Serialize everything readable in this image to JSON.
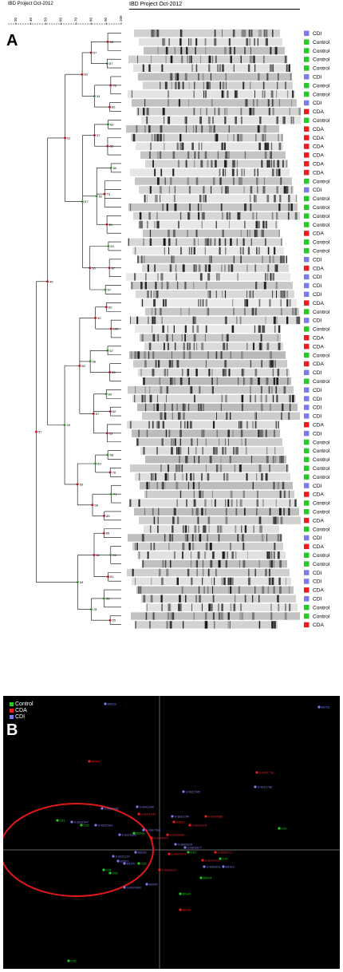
{
  "header": {
    "dendro_title": "IBD Project Oct-2012",
    "gel_title": "IBD Project Oct-2012",
    "scale_ticks": [
      "30",
      "40",
      "50",
      "60",
      "70",
      "80",
      "90",
      "100"
    ]
  },
  "panel_a": {
    "letter": "A",
    "colors": {
      "CDI": "#7b7bf0",
      "Control": "#22cc22",
      "CDA": "#ee1c1c"
    },
    "samples": [
      "CDI",
      "Control",
      "Control",
      "Control",
      "Control",
      "CDI",
      "Control",
      "Control",
      "CDI",
      "CDA",
      "Control",
      "CDA",
      "CDA",
      "CDA",
      "CDA",
      "CDA",
      "CDA",
      "Control",
      "CDI",
      "Control",
      "Control",
      "Control",
      "Control",
      "CDA",
      "Control",
      "Control",
      "CDI",
      "CDA",
      "CDI",
      "CDI",
      "CDI",
      "CDA",
      "Control",
      "CDI",
      "Control",
      "CDA",
      "CDA",
      "Control",
      "CDA",
      "CDI",
      "Control",
      "CDI",
      "CDI",
      "CDI",
      "CDI",
      "CDA",
      "CDI",
      "Control",
      "Control",
      "Control",
      "Control",
      "Control",
      "CDI",
      "CDA",
      "Control",
      "Control",
      "CDA",
      "Control",
      "CDI",
      "CDA",
      "Control",
      "Control",
      "CDI",
      "CDI",
      "CDA",
      "CDI",
      "Control",
      "Control",
      "CDA"
    ],
    "node_values": [
      "69",
      "87",
      "76",
      "66",
      "60",
      "65",
      "60",
      "73",
      "81",
      "63",
      "87",
      "57",
      "60",
      "100",
      "67",
      "95",
      "60",
      "82",
      "63",
      "58",
      "76",
      "71",
      "85",
      "85",
      "99",
      "91",
      "99",
      "55",
      "57",
      "54",
      "57",
      "52",
      "50",
      "50",
      "56",
      "57",
      "60",
      "66",
      "61",
      "78",
      "82",
      "67",
      "80",
      "55",
      "64",
      "61",
      "49",
      "45",
      "57"
    ]
  },
  "panel_b": {
    "letter": "B",
    "legend": [
      {
        "label": "Control",
        "color": "#22cc22"
      },
      {
        "label": "CDA",
        "color": "#ee1c1c"
      },
      {
        "label": "CDI",
        "color": "#7b7bf0"
      }
    ],
    "points": [
      {
        "label": "B6033",
        "group": "CDI"
      },
      {
        "label": "B5726",
        "group": "CDI"
      },
      {
        "label": "B4979",
        "group": "CDA"
      },
      {
        "label": "S-6821734",
        "group": "CDA"
      },
      {
        "label": "S-6821788",
        "group": "CDI"
      },
      {
        "label": "S-6821545",
        "group": "CDI"
      },
      {
        "label": "S-6841682",
        "group": "CDI"
      },
      {
        "label": "S-6841640",
        "group": "CDI"
      },
      {
        "label": "S-6839685",
        "group": "CDA"
      },
      {
        "label": "S-6821784",
        "group": "CDI"
      },
      {
        "label": "B4993",
        "group": "CDA"
      },
      {
        "label": "S-6841540",
        "group": "CDA"
      },
      {
        "label": "C51",
        "group": "Control"
      },
      {
        "label": "S-6832547",
        "group": "CDI"
      },
      {
        "label": "C56",
        "group": "Control"
      },
      {
        "label": "S-6831563",
        "group": "CDI"
      },
      {
        "label": "B5006",
        "group": "Control"
      },
      {
        "label": "S-6847304",
        "group": "CDI"
      },
      {
        "label": "S-6821800",
        "group": "CDI"
      },
      {
        "label": "S-6849472",
        "group": "CDA"
      },
      {
        "label": "S-6833440",
        "group": "CDA"
      },
      {
        "label": "S-6831616",
        "group": "CDA"
      },
      {
        "label": "C42",
        "group": "Control"
      },
      {
        "label": "S-6806677",
        "group": "CDI"
      },
      {
        "label": "S-6849329",
        "group": "CDI"
      },
      {
        "label": "C41",
        "group": "Control"
      },
      {
        "label": "S-6821157",
        "group": "CDI"
      },
      {
        "label": "B5007",
        "group": "CDI"
      },
      {
        "label": "S-6849473",
        "group": "CDA"
      },
      {
        "label": "B5006",
        "group": "CDI"
      },
      {
        "label": "S-6858712",
        "group": "CDA"
      },
      {
        "label": "C42",
        "group": "Control"
      },
      {
        "label": "S-6841922",
        "group": "CDA"
      },
      {
        "label": "B5140",
        "group": "CDI"
      },
      {
        "label": "C53",
        "group": "Control"
      },
      {
        "label": "B5143",
        "group": "CDI"
      },
      {
        "label": "S-6860211",
        "group": "CDI"
      },
      {
        "label": "S-6808212",
        "group": "CDA"
      },
      {
        "label": "B5004",
        "group": "Control"
      },
      {
        "label": "B5045",
        "group": "CDI"
      },
      {
        "label": "B5136",
        "group": "CDA"
      },
      {
        "label": "C54",
        "group": "Control"
      },
      {
        "label": "C58",
        "group": "Control"
      },
      {
        "label": "S-6829000",
        "group": "CDI"
      },
      {
        "label": "B5140",
        "group": "Control"
      },
      {
        "label": "C35",
        "group": "Control"
      }
    ]
  }
}
